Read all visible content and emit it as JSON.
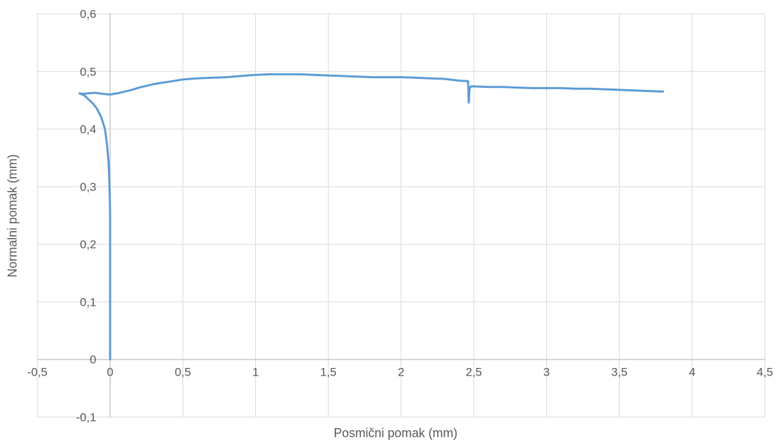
{
  "chart_data": {
    "type": "scatter",
    "title": "",
    "xlabel": "Posmični pomak (mm)",
    "ylabel": "Normalni pomak (mm)",
    "xlim": [
      -0.5,
      4.5
    ],
    "ylim": [
      -0.1,
      0.6
    ],
    "x_ticks": [
      -0.5,
      0,
      0.5,
      1,
      1.5,
      2,
      2.5,
      3,
      3.5,
      4,
      4.5
    ],
    "y_ticks": [
      -0.1,
      0,
      0.1,
      0.2,
      0.3,
      0.4,
      0.5,
      0.6
    ],
    "x_tick_labels": [
      "-0,5",
      "0",
      "0,5",
      "1",
      "1,5",
      "2",
      "2,5",
      "3",
      "3,5",
      "4",
      "4,5"
    ],
    "y_tick_labels": [
      "-0,1",
      "0",
      "0,1",
      "0,2",
      "0,3",
      "0,4",
      "0,5",
      "0,6"
    ],
    "grid": true,
    "legend": "none",
    "series_color": "#5b9bd5",
    "series": [
      {
        "x": [
          0.0,
          0.0,
          0.0,
          0.0,
          0.0,
          -0.002,
          -0.005,
          -0.01,
          -0.02,
          -0.035,
          -0.06,
          -0.09,
          -0.12,
          -0.15,
          -0.17,
          -0.19,
          -0.205,
          -0.21,
          -0.19,
          -0.15,
          -0.1,
          -0.05,
          0.0,
          0.05,
          0.1,
          0.15,
          0.2,
          0.25,
          0.3,
          0.35,
          0.4,
          0.5,
          0.6,
          0.7,
          0.8,
          0.9,
          1.0,
          1.1,
          1.2,
          1.3,
          1.4,
          1.5,
          1.6,
          1.7,
          1.8,
          1.9,
          2.0,
          2.1,
          2.2,
          2.3,
          2.4,
          2.46,
          2.465,
          2.47,
          2.48,
          2.5,
          2.6,
          2.7,
          2.8,
          2.9,
          3.0,
          3.1,
          3.2,
          3.3,
          3.4,
          3.5,
          3.6,
          3.7,
          3.8
        ],
        "y": [
          0.0,
          0.1,
          0.15,
          0.2,
          0.25,
          0.28,
          0.31,
          0.34,
          0.37,
          0.4,
          0.42,
          0.435,
          0.445,
          0.452,
          0.457,
          0.46,
          0.461,
          0.462,
          0.461,
          0.462,
          0.463,
          0.461,
          0.46,
          0.462,
          0.465,
          0.468,
          0.472,
          0.475,
          0.478,
          0.48,
          0.482,
          0.486,
          0.488,
          0.489,
          0.49,
          0.492,
          0.494,
          0.495,
          0.495,
          0.495,
          0.494,
          0.493,
          0.492,
          0.491,
          0.49,
          0.49,
          0.49,
          0.489,
          0.488,
          0.487,
          0.484,
          0.483,
          0.446,
          0.47,
          0.474,
          0.474,
          0.473,
          0.473,
          0.472,
          0.471,
          0.471,
          0.471,
          0.47,
          0.47,
          0.469,
          0.468,
          0.467,
          0.466,
          0.465
        ]
      }
    ]
  }
}
